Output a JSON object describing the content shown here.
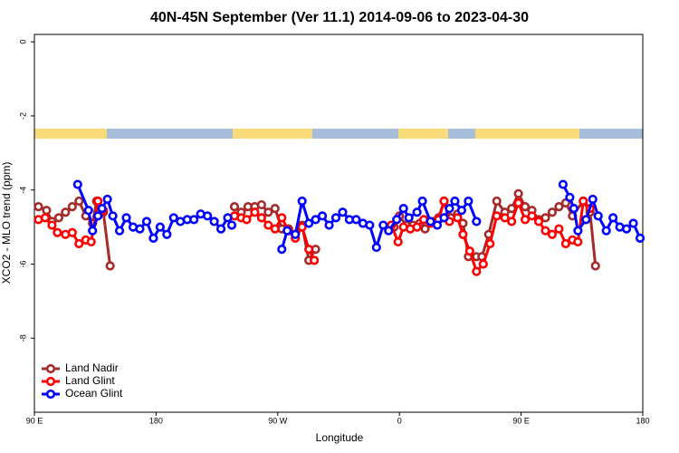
{
  "chart_data": {
    "type": "line",
    "title": "40N-45N September (Ver 11.1)   2014-09-06 to 2023-04-30",
    "x_label": "Longitude",
    "y_label": "XCO2 - MLO trend (ppm)",
    "xlim": [
      90,
      540
    ],
    "ylim": [
      -10,
      0.2
    ],
    "xticks": [
      {
        "value": 90,
        "label": "90 E"
      },
      180,
      {
        "value": 270,
        "label": "90 W"
      },
      {
        "value": 360,
        "label": "0"
      },
      {
        "value": 450,
        "label": "90 E"
      },
      {
        "value": 540,
        "label": "180"
      }
    ],
    "yticks": [
      0,
      -2,
      -4,
      -6,
      -8
    ],
    "legend": "bottom left",
    "series": [
      {
        "name": "Land Nadir",
        "color": "#a52a2a",
        "x": [
          93,
          99,
          103,
          108,
          113,
          118,
          123,
          128,
          133,
          136,
          141,
          146,
          190,
          238,
          243,
          248,
          253,
          258,
          263,
          268,
          273,
          278,
          283,
          288,
          293,
          298,
          330,
          356,
          360,
          365,
          370,
          375,
          379,
          385,
          389,
          393,
          398,
          403,
          407,
          411,
          417,
          421,
          426,
          432,
          438,
          443,
          448,
          453,
          458,
          463,
          468,
          473,
          478,
          483,
          488,
          496,
          501,
          505
        ],
        "values": [
          -4.45,
          -4.55,
          -4.85,
          -4.75,
          -4.6,
          -4.45,
          -4.3,
          -4.7,
          -4.9,
          -4.3,
          -4.6,
          -6.05,
          null,
          -4.45,
          -4.6,
          -4.45,
          -4.45,
          -4.4,
          -4.6,
          -4.5,
          -5.05,
          -5.05,
          -5.2,
          -4.95,
          -5.9,
          -5.6,
          null,
          -5.0,
          -4.7,
          -4.95,
          -4.95,
          -4.9,
          -5.05,
          -4.85,
          -4.75,
          -4.3,
          -4.75,
          -4.65,
          -4.9,
          -5.8,
          -5.8,
          -5.8,
          -5.2,
          -4.3,
          -4.6,
          -4.5,
          -4.1,
          -4.45,
          -4.55,
          -4.8,
          -4.75,
          -4.6,
          -4.45,
          -4.35,
          -4.7,
          -4.3,
          -4.6,
          -6.05
        ]
      },
      {
        "name": "Land Glint",
        "color": "#ff0000",
        "x": [
          93,
          98,
          103,
          107,
          113,
          118,
          123,
          128,
          132,
          137,
          141,
          190,
          238,
          243,
          247,
          253,
          258,
          263,
          268,
          273,
          278,
          283,
          288,
          293,
          297,
          330,
          354,
          359,
          363,
          368,
          373,
          378,
          383,
          389,
          393,
          397,
          403,
          407,
          412,
          417,
          422,
          427,
          432,
          438,
          443,
          448,
          453,
          458,
          463,
          468,
          473,
          478,
          483,
          488,
          492,
          496,
          501
        ],
        "values": [
          -4.8,
          -4.75,
          -4.95,
          -5.15,
          -5.2,
          -5.15,
          -5.45,
          -5.35,
          -5.4,
          -4.3,
          -4.55,
          null,
          -4.7,
          -4.75,
          -4.8,
          -4.6,
          -4.75,
          -4.95,
          -5.05,
          -4.75,
          -5.1,
          -5.3,
          -5.0,
          -5.6,
          -5.9,
          null,
          -4.95,
          -5.4,
          -5.0,
          -5.05,
          -5.0,
          -4.8,
          -4.9,
          -4.8,
          -4.3,
          -4.85,
          -4.75,
          -5.2,
          -5.65,
          -6.2,
          -6.0,
          -5.45,
          -4.7,
          -4.75,
          -4.85,
          -4.35,
          -4.8,
          -4.7,
          -4.85,
          -5.1,
          -5.2,
          -5.05,
          -5.45,
          -5.35,
          -5.4,
          -4.3,
          -4.5
        ]
      },
      {
        "name": "Ocean Glint",
        "color": "#0000ff",
        "x": [
          122,
          130,
          133,
          137,
          140,
          144,
          148,
          153,
          158,
          163,
          168,
          173,
          178,
          183,
          188,
          193,
          198,
          203,
          208,
          213,
          218,
          223,
          228,
          233,
          236,
          255,
          273,
          277,
          283,
          288,
          293,
          298,
          303,
          308,
          313,
          318,
          323,
          328,
          333,
          338,
          343,
          348,
          352,
          358,
          363,
          367,
          373,
          377,
          383,
          388,
          393,
          397,
          401,
          406,
          411,
          417,
          450,
          481,
          486,
          489,
          492,
          498,
          503,
          507,
          513,
          518,
          523,
          528,
          533,
          538
        ],
        "values": [
          -3.85,
          -4.55,
          -5.1,
          -4.7,
          -4.5,
          -4.25,
          -4.7,
          -5.1,
          -4.75,
          -5.0,
          -5.05,
          -4.85,
          -5.3,
          -5.0,
          -5.2,
          -4.75,
          -4.85,
          -4.8,
          -4.8,
          -4.65,
          -4.7,
          -4.85,
          -5.05,
          -4.75,
          -4.95,
          null,
          -5.6,
          -5.1,
          -5.2,
          -4.3,
          -4.9,
          -4.8,
          -4.7,
          -4.95,
          -4.75,
          -4.6,
          -4.8,
          -4.8,
          -4.9,
          -4.95,
          -5.55,
          -4.95,
          -5.1,
          -4.8,
          -4.5,
          -4.75,
          -4.6,
          -4.3,
          -4.85,
          -4.95,
          -4.75,
          -4.5,
          -4.3,
          -4.55,
          -4.3,
          -4.85,
          null,
          -3.85,
          -4.2,
          -4.5,
          -5.1,
          -4.8,
          -4.25,
          -4.7,
          -5.1,
          -4.75,
          -5.0,
          -5.05,
          -4.9,
          -5.3
        ]
      }
    ]
  }
}
